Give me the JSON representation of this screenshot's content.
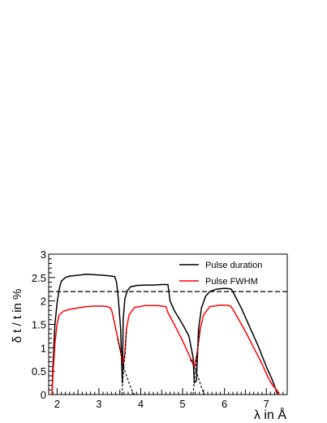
{
  "chart_data": {
    "type": "line",
    "xlabel": "λ in Å",
    "ylabel": "δ t / t  in  %",
    "xlim": [
      1.8,
      7.5
    ],
    "ylim": [
      0,
      3
    ],
    "xticks": [
      2,
      3,
      4,
      5,
      6,
      7
    ],
    "yticks": [
      0,
      0.5,
      1,
      1.5,
      2,
      2.5,
      3
    ],
    "legend_position": "top-right",
    "reference_line": {
      "style": "dashed",
      "color": "#000000",
      "y": 2.2
    },
    "series": [
      {
        "name": "Pulse duration",
        "color": "#000000",
        "points": [
          [
            1.88,
            0
          ],
          [
            1.9,
            0.6
          ],
          [
            1.95,
            1.5
          ],
          [
            2.0,
            1.95
          ],
          [
            2.05,
            2.25
          ],
          [
            2.1,
            2.42
          ],
          [
            2.2,
            2.5
          ],
          [
            2.3,
            2.53
          ],
          [
            2.5,
            2.55
          ],
          [
            2.7,
            2.57
          ],
          [
            2.9,
            2.56
          ],
          [
            3.1,
            2.55
          ],
          [
            3.2,
            2.54
          ],
          [
            3.3,
            2.53
          ],
          [
            3.38,
            2.52
          ],
          [
            3.42,
            2.4
          ],
          [
            3.47,
            2.0
          ],
          [
            3.52,
            1.4
          ],
          [
            3.56,
            0.25
          ],
          [
            3.58,
            1.6
          ],
          [
            3.62,
            2.05
          ],
          [
            3.68,
            2.22
          ],
          [
            3.75,
            2.3
          ],
          [
            3.9,
            2.33
          ],
          [
            4.1,
            2.34
          ],
          [
            4.3,
            2.34
          ],
          [
            4.5,
            2.35
          ],
          [
            4.65,
            2.35
          ],
          [
            4.7,
            2.0
          ],
          [
            4.8,
            1.8
          ],
          [
            5.0,
            1.5
          ],
          [
            5.15,
            1.25
          ],
          [
            5.25,
            0.8
          ],
          [
            5.28,
            0.25
          ],
          [
            5.33,
            0.3
          ],
          [
            5.38,
            1.4
          ],
          [
            5.45,
            1.85
          ],
          [
            5.55,
            2.1
          ],
          [
            5.65,
            2.2
          ],
          [
            5.8,
            2.25
          ],
          [
            6.0,
            2.27
          ],
          [
            6.15,
            2.26
          ],
          [
            6.2,
            2.2
          ],
          [
            6.4,
            1.85
          ],
          [
            6.6,
            1.45
          ],
          [
            6.8,
            1.05
          ],
          [
            7.0,
            0.6
          ],
          [
            7.15,
            0.3
          ],
          [
            7.25,
            0.05
          ],
          [
            7.28,
            0
          ]
        ]
      },
      {
        "name": "Pulse FWHM",
        "color": "#ff0000",
        "points": [
          [
            1.88,
            0
          ],
          [
            1.9,
            0.4
          ],
          [
            1.95,
            1.1
          ],
          [
            2.0,
            1.5
          ],
          [
            2.05,
            1.7
          ],
          [
            2.15,
            1.78
          ],
          [
            2.3,
            1.82
          ],
          [
            2.5,
            1.85
          ],
          [
            2.7,
            1.88
          ],
          [
            2.9,
            1.89
          ],
          [
            3.1,
            1.89
          ],
          [
            3.2,
            1.88
          ],
          [
            3.28,
            1.85
          ],
          [
            3.32,
            1.75
          ],
          [
            3.38,
            1.5
          ],
          [
            3.45,
            1.2
          ],
          [
            3.52,
            0.9
          ],
          [
            3.58,
            0.65
          ],
          [
            3.62,
            0.9
          ],
          [
            3.66,
            1.4
          ],
          [
            3.72,
            1.7
          ],
          [
            3.85,
            1.86
          ],
          [
            4.1,
            1.9
          ],
          [
            4.4,
            1.9
          ],
          [
            4.6,
            1.88
          ],
          [
            4.65,
            1.75
          ],
          [
            4.8,
            1.5
          ],
          [
            5.0,
            1.15
          ],
          [
            5.15,
            0.85
          ],
          [
            5.28,
            0.6
          ],
          [
            5.35,
            0.9
          ],
          [
            5.42,
            1.4
          ],
          [
            5.5,
            1.7
          ],
          [
            5.65,
            1.88
          ],
          [
            5.9,
            1.91
          ],
          [
            6.05,
            1.91
          ],
          [
            6.15,
            1.89
          ],
          [
            6.25,
            1.75
          ],
          [
            6.5,
            1.35
          ],
          [
            6.7,
            1.0
          ],
          [
            6.9,
            0.65
          ],
          [
            7.05,
            0.35
          ],
          [
            7.15,
            0.2
          ],
          [
            7.25,
            0.1
          ],
          [
            7.3,
            0
          ]
        ]
      },
      {
        "color": "#000000",
        "style": "dashed",
        "points": [
          [
            3.45,
            1.2
          ],
          [
            3.5,
            1.0
          ],
          [
            3.55,
            0.75
          ],
          [
            3.62,
            0.5
          ],
          [
            3.7,
            0.3
          ],
          [
            3.78,
            0.1
          ],
          [
            3.85,
            0
          ]
        ]
      },
      {
        "color": "#000000",
        "style": "dashed",
        "points": [
          [
            3.55,
            0
          ],
          [
            3.57,
            0.3
          ],
          [
            3.6,
            0.65
          ],
          [
            3.63,
            0.9
          ],
          [
            3.66,
            1.4
          ]
        ]
      },
      {
        "color": "#000000",
        "style": "dashed",
        "points": [
          [
            5.18,
            0.75
          ],
          [
            5.25,
            0.65
          ],
          [
            5.3,
            0.55
          ],
          [
            5.38,
            0.35
          ],
          [
            5.45,
            0.15
          ],
          [
            5.52,
            0
          ]
        ]
      },
      {
        "color": "#000000",
        "style": "dashed",
        "points": [
          [
            5.25,
            0
          ],
          [
            5.28,
            0.3
          ],
          [
            5.31,
            0.6
          ],
          [
            5.35,
            0.9
          ],
          [
            5.42,
            1.4
          ]
        ]
      }
    ]
  }
}
